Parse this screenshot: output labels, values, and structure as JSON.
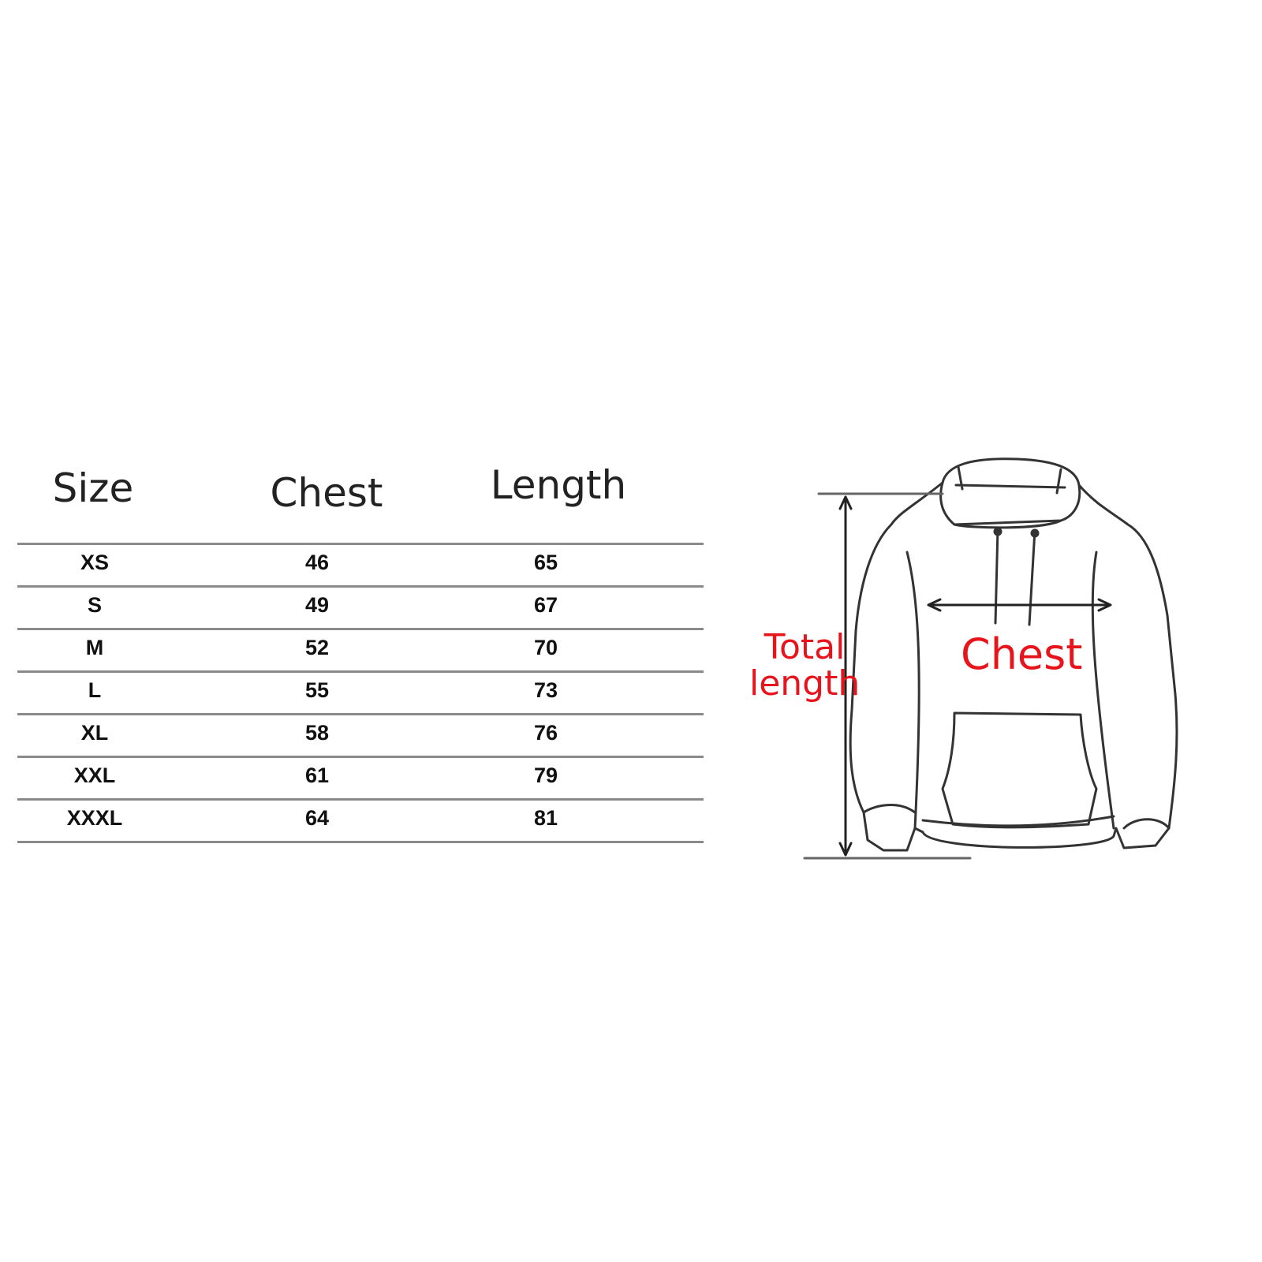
{
  "table": {
    "headers": [
      "Size",
      "Chest",
      "Length"
    ],
    "rows": [
      [
        "XS",
        "46",
        "65"
      ],
      [
        "S",
        "49",
        "67"
      ],
      [
        "M",
        "52",
        "70"
      ],
      [
        "L",
        "55",
        "73"
      ],
      [
        "XL",
        "58",
        "76"
      ],
      [
        "XXL",
        "61",
        "79"
      ],
      [
        "XXXL",
        "64",
        "81"
      ]
    ]
  },
  "diagram": {
    "total_length_label": [
      "Total",
      "length"
    ],
    "chest_label": "Chest",
    "label_color": "#e8141c"
  }
}
